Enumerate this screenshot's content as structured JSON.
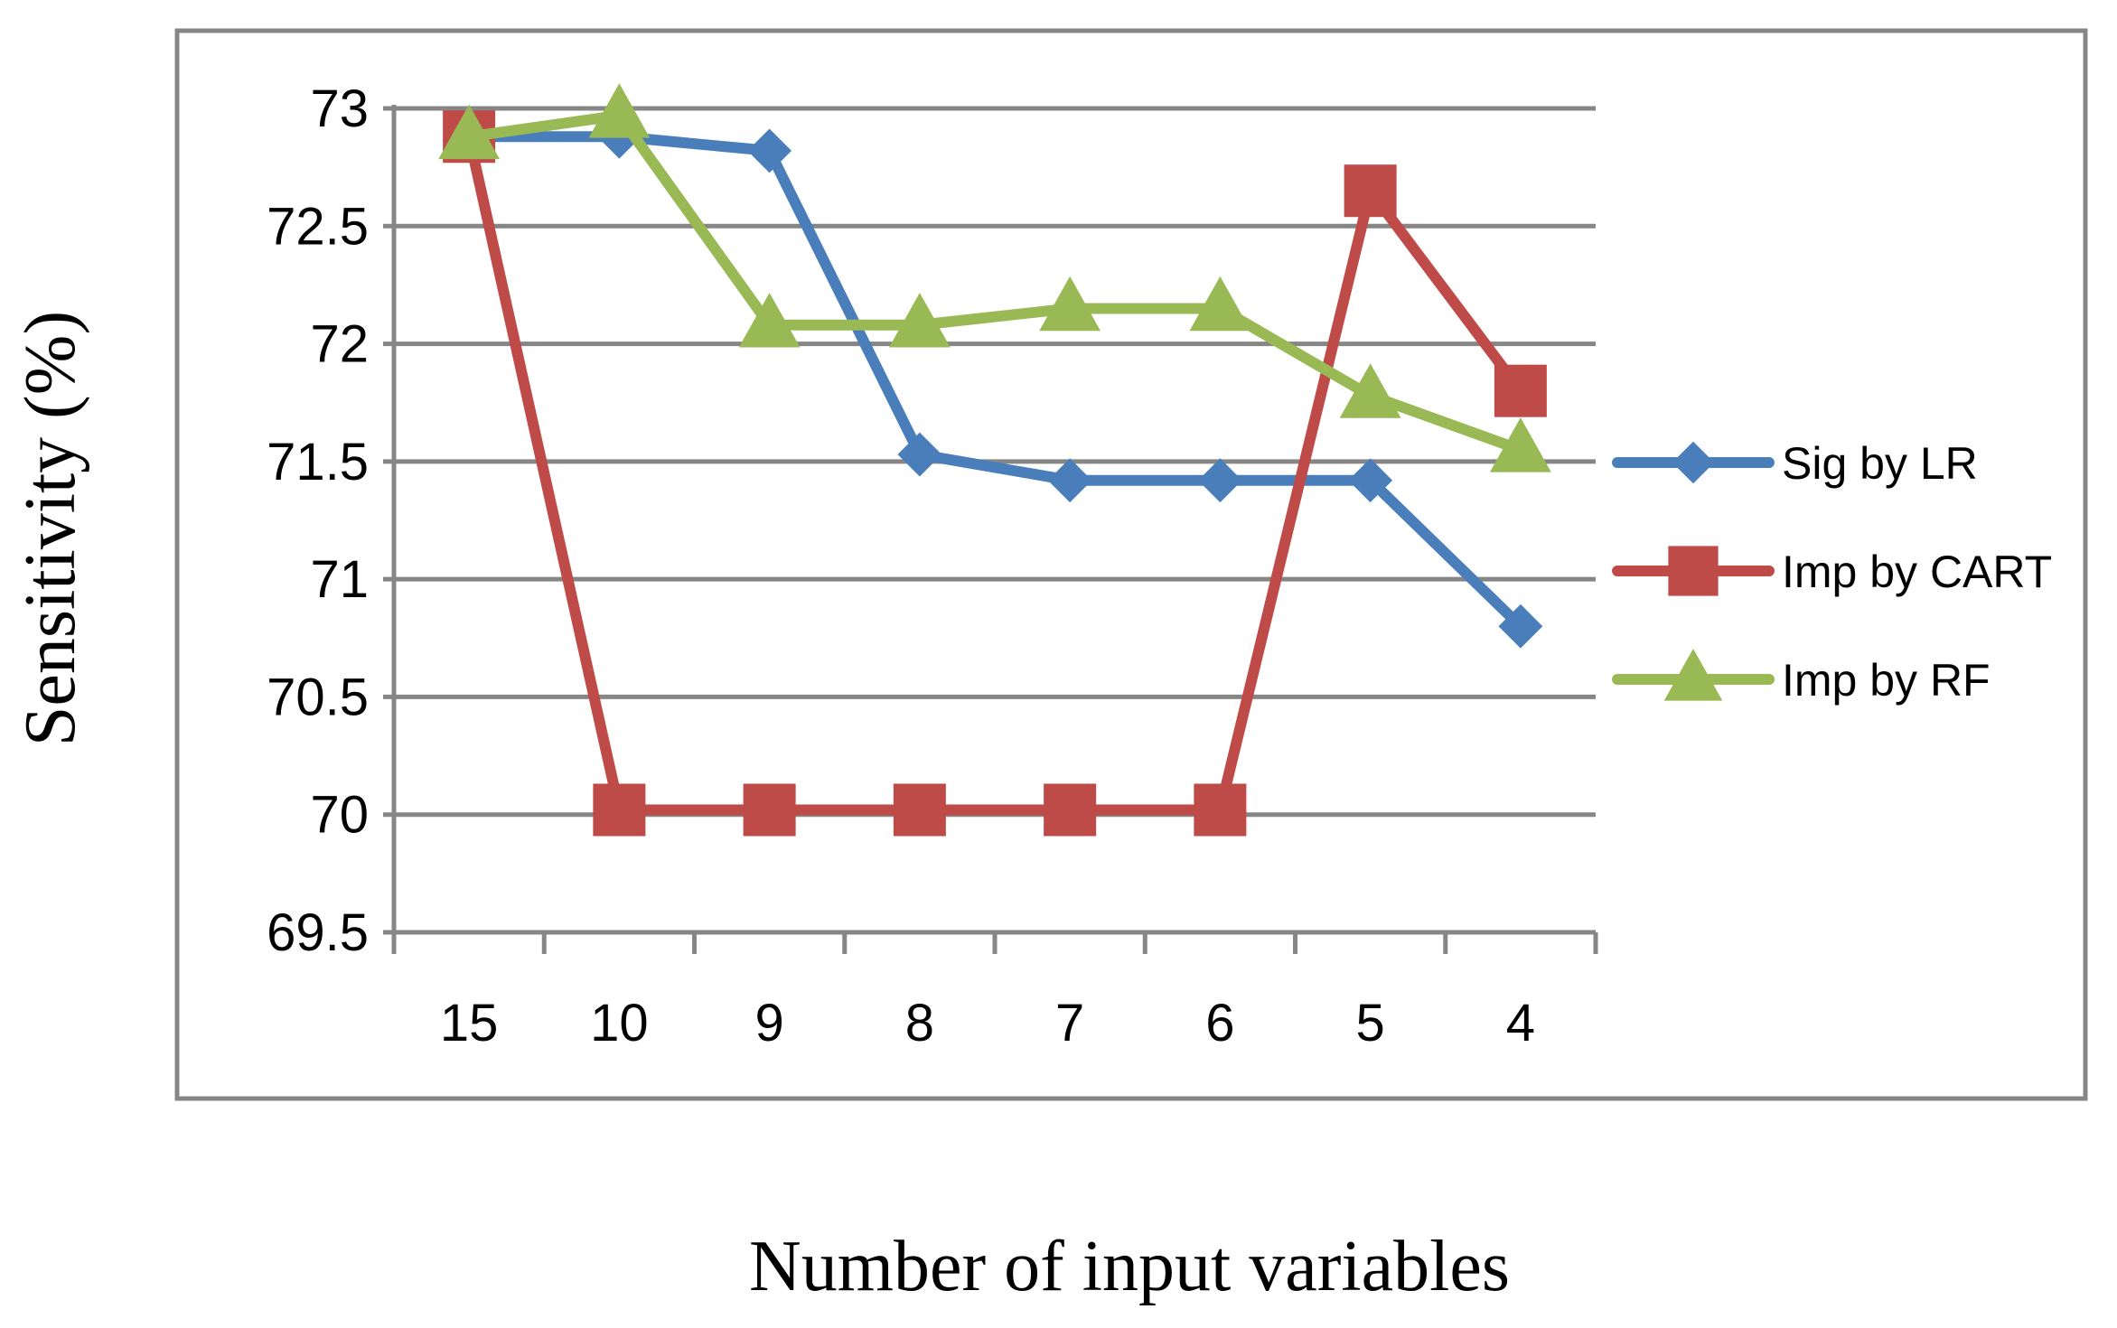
{
  "chart_data": {
    "type": "line",
    "title": "",
    "xlabel": "Number of input variables",
    "ylabel": "Sensitivity (%)",
    "categories": [
      "15",
      "10",
      "9",
      "8",
      "7",
      "6",
      "5",
      "4"
    ],
    "ylim": [
      69.5,
      73
    ],
    "yticks": [
      "73",
      "72.5",
      "72",
      "71.5",
      "71",
      "70.5",
      "70",
      "69.5"
    ],
    "grid": "horizontal",
    "legend_position": "right",
    "series": [
      {
        "name": "Sig by LR",
        "color": "#4a7ebb",
        "marker": "diamond",
        "values": [
          72.88,
          72.88,
          72.82,
          71.53,
          71.42,
          71.42,
          71.42,
          70.8
        ]
      },
      {
        "name": "Imp by CART",
        "color": "#be4b48",
        "marker": "square",
        "values": [
          72.88,
          70.02,
          70.02,
          70.02,
          70.02,
          70.02,
          72.65,
          71.8
        ]
      },
      {
        "name": "Imp by RF",
        "color": "#98b954",
        "marker": "triangle",
        "values": [
          72.88,
          72.97,
          72.08,
          72.08,
          72.15,
          72.15,
          71.78,
          71.55
        ]
      }
    ]
  }
}
